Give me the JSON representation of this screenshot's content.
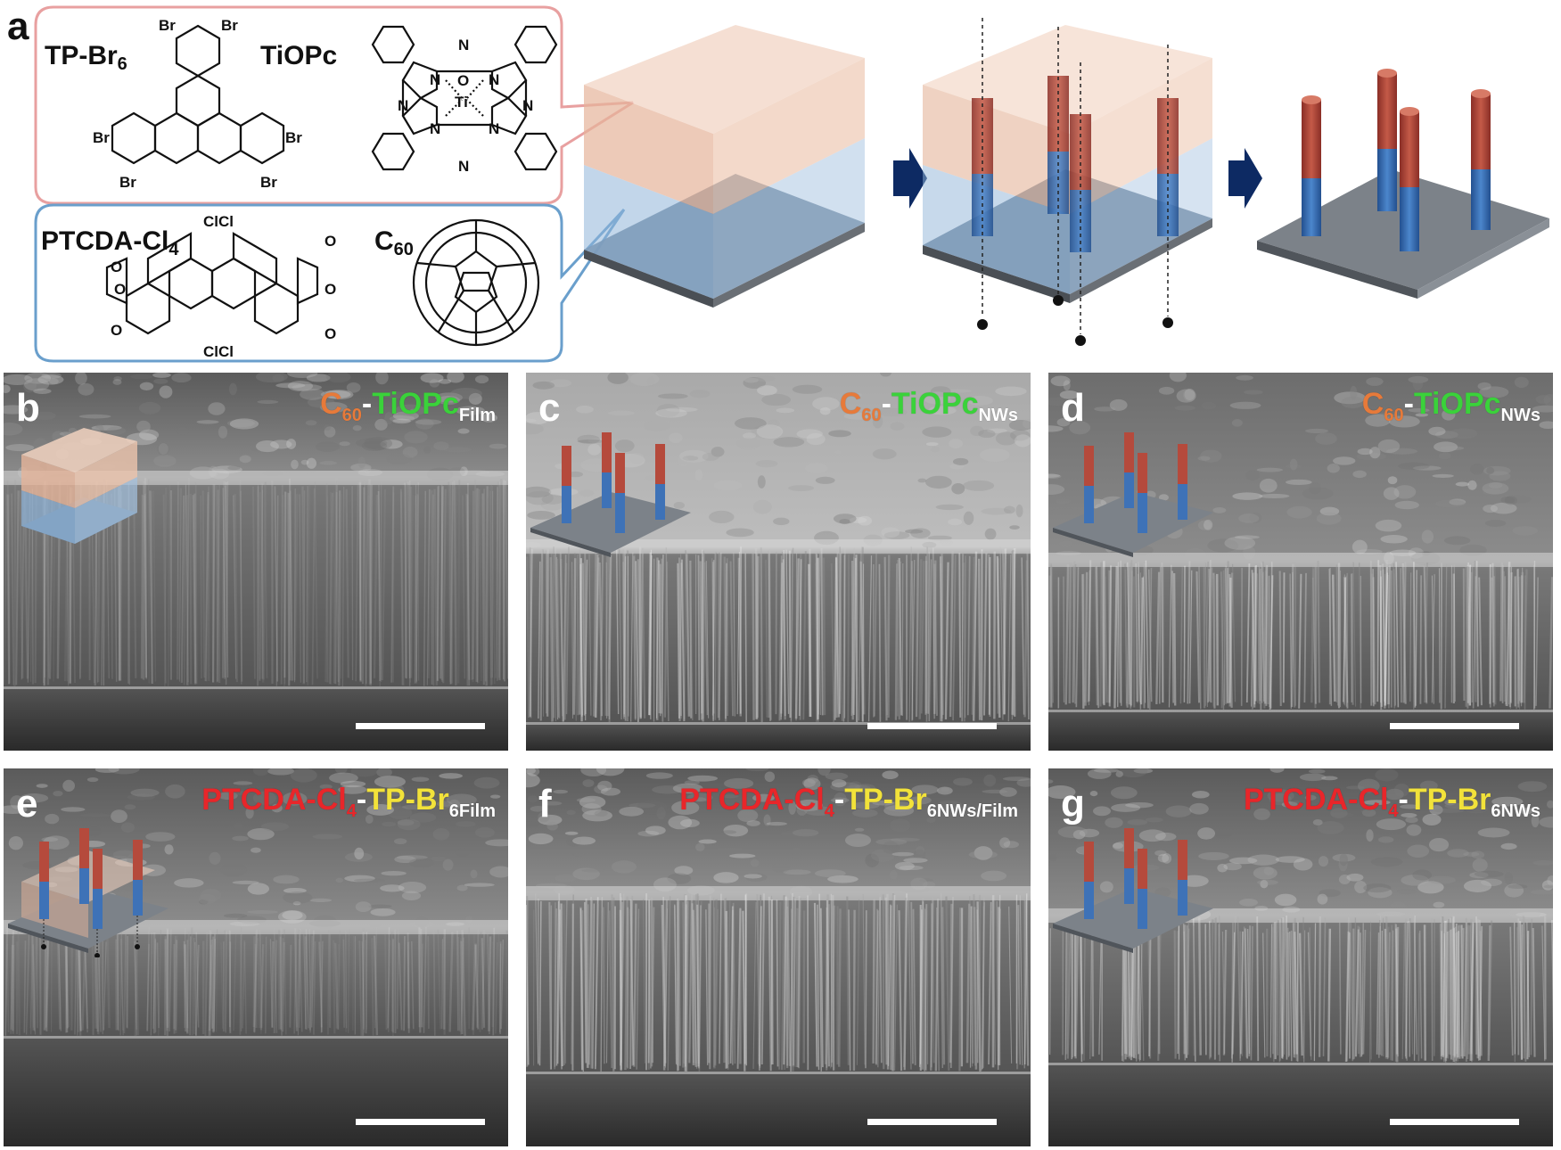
{
  "panel_a": {
    "letter": "a",
    "molecules": {
      "tp_br6": {
        "name": "TP-Br",
        "sub": "6"
      },
      "tiopc": {
        "name": "TiOPc"
      },
      "ptcda_cl4": {
        "name": "PTCDA-Cl",
        "sub": "4"
      },
      "c60": {
        "name": "C",
        "sub": "60"
      }
    },
    "atoms": {
      "br": "Br",
      "n": "N",
      "ti": "Ti",
      "o": "O",
      "cl": "Cl",
      "clcl": "ClCl"
    },
    "colors": {
      "acceptor_box": "#e8a0a0",
      "donor_box": "#6a9fcc",
      "arrow": "#0d2a63",
      "nanowire_top": "#b54a3c",
      "nanowire_bottom": "#3e72b7",
      "substrate": "#7c8289"
    }
  },
  "sem_panels": [
    {
      "letter": "b",
      "label_parts": [
        {
          "text": "C",
          "color": "#e77a3a"
        },
        {
          "text": "60",
          "color": "#e77a3a",
          "sub": true
        },
        {
          "text": "-",
          "color": "#ffffff"
        },
        {
          "text": "TiOPc",
          "color": "#3ad23a"
        },
        {
          "text": "Film",
          "color": "#ffffff",
          "sub": true
        }
      ],
      "inset": "film"
    },
    {
      "letter": "c",
      "label_parts": [
        {
          "text": "C",
          "color": "#e77a3a"
        },
        {
          "text": "60",
          "color": "#e77a3a",
          "sub": true
        },
        {
          "text": "-",
          "color": "#ffffff"
        },
        {
          "text": "TiOPc",
          "color": "#3ad23a"
        },
        {
          "text": "NWs",
          "color": "#ffffff",
          "sub": true
        }
      ],
      "inset": "nanowires"
    },
    {
      "letter": "d",
      "label_parts": [
        {
          "text": "C",
          "color": "#e77a3a"
        },
        {
          "text": "60",
          "color": "#e77a3a",
          "sub": true
        },
        {
          "text": "-",
          "color": "#ffffff"
        },
        {
          "text": "TiOPc",
          "color": "#3ad23a"
        },
        {
          "text": "NWs",
          "color": "#ffffff",
          "sub": true
        }
      ],
      "inset": "nanowires"
    },
    {
      "letter": "e",
      "label_parts": [
        {
          "text": "PTCDA-Cl",
          "color": "#e8262a"
        },
        {
          "text": "4",
          "color": "#e8262a",
          "sub": true
        },
        {
          "text": "-",
          "color": "#ffffff"
        },
        {
          "text": "TP-Br",
          "color": "#f2e23a"
        },
        {
          "text": "6Film",
          "color": "#ffffff",
          "sub": true
        }
      ],
      "inset": "etching"
    },
    {
      "letter": "f",
      "label_parts": [
        {
          "text": "PTCDA-Cl",
          "color": "#e8262a"
        },
        {
          "text": "4",
          "color": "#e8262a",
          "sub": true
        },
        {
          "text": "-",
          "color": "#ffffff"
        },
        {
          "text": "TP-Br",
          "color": "#f2e23a"
        },
        {
          "text": "6NWs/Film",
          "color": "#ffffff",
          "sub": true
        }
      ],
      "inset": "none"
    },
    {
      "letter": "g",
      "label_parts": [
        {
          "text": "PTCDA-Cl",
          "color": "#e8262a"
        },
        {
          "text": "4",
          "color": "#e8262a",
          "sub": true
        },
        {
          "text": "-",
          "color": "#ffffff"
        },
        {
          "text": "TP-Br",
          "color": "#f2e23a"
        },
        {
          "text": "6NWs",
          "color": "#ffffff",
          "sub": true
        }
      ],
      "inset": "nanowires"
    }
  ]
}
